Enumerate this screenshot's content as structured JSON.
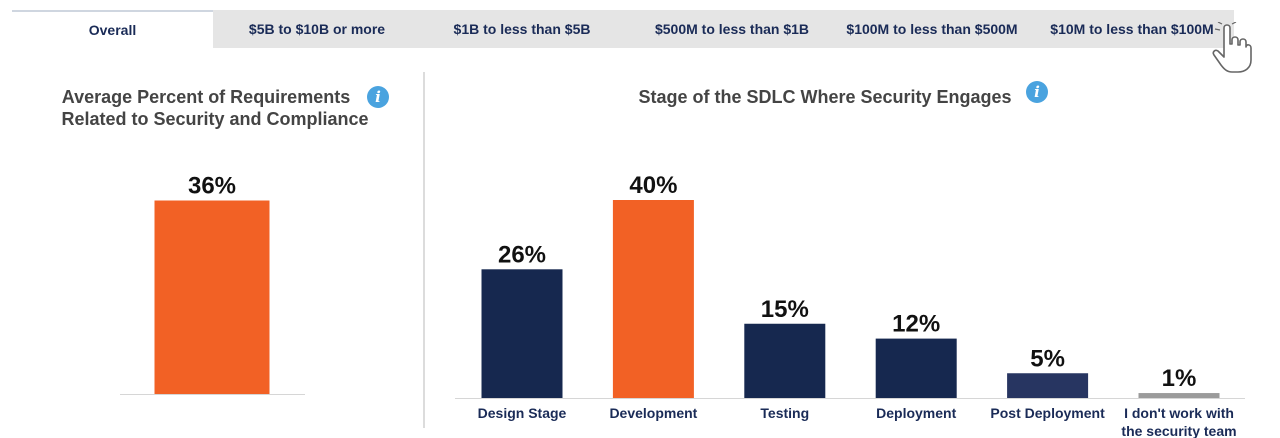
{
  "tabs": [
    {
      "label": "Overall",
      "active": true
    },
    {
      "label": "$5B to $10B or more",
      "active": false
    },
    {
      "label": "$1B to less than $5B",
      "active": false
    },
    {
      "label": "$500M to less than $1B",
      "active": false
    },
    {
      "label": "$100M to less than $500M",
      "active": false
    },
    {
      "label": "$10M to less than $100M",
      "active": false
    }
  ],
  "colors": {
    "orange": "#f26125",
    "navy": "#16284f",
    "navy_light": "#273561",
    "gray": "#9b9b9b",
    "label_navy": "#1a2b57",
    "info_blue": "#4aa3df"
  },
  "chart_data": [
    {
      "type": "bar",
      "title_line1": "Average Percent of Requirements",
      "title_line2": "Related to Security and Compliance",
      "categories": [
        ""
      ],
      "values": [
        36
      ],
      "value_labels": [
        "36%"
      ],
      "colors": [
        "#f26125"
      ],
      "ylim": [
        0,
        40
      ],
      "grid": false,
      "legend": "none"
    },
    {
      "type": "bar",
      "title_line1": "Stage of the SDLC Where Security Engages",
      "categories": [
        "Design Stage",
        "Development",
        "Testing",
        "Deployment",
        "Post Deployment",
        "I don't work with the security team"
      ],
      "category_lines": [
        [
          "Design Stage"
        ],
        [
          "Development"
        ],
        [
          "Testing"
        ],
        [
          "Deployment"
        ],
        [
          "Post Deployment"
        ],
        [
          "I don't work with",
          "the security team"
        ]
      ],
      "values": [
        26,
        40,
        15,
        12,
        5,
        1
      ],
      "value_labels": [
        "26%",
        "40%",
        "15%",
        "12%",
        "5%",
        "1%"
      ],
      "colors": [
        "#16284f",
        "#f26125",
        "#16284f",
        "#16284f",
        "#273561",
        "#9b9b9b"
      ],
      "ylim": [
        0,
        40
      ],
      "grid": false,
      "legend": "none"
    }
  ]
}
